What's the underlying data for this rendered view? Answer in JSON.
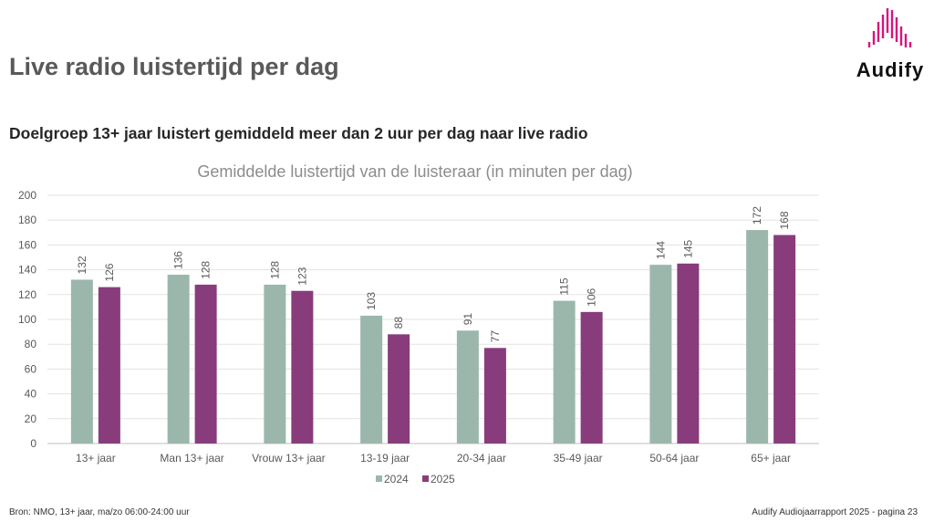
{
  "header": {
    "title": "Live radio luistertijd per dag",
    "subtitle": "Doelgroep 13+ jaar luistert gemiddeld meer dan 2 uur per dag naar live radio"
  },
  "logo": {
    "text": "Audify",
    "color": "#d6157e"
  },
  "footer": {
    "source": "Bron: NMO, 13+ jaar, ma/zo 06:00-24:00 uur",
    "page": "Audify Audiojaarrapport 2025 - pagina 23"
  },
  "chart_data": {
    "type": "bar",
    "title": "Gemiddelde luistertijd van de luisteraar (in minuten per dag)",
    "categories": [
      "13+ jaar",
      "Man 13+ jaar",
      "Vrouw 13+ jaar",
      "13-19 jaar",
      "20-34 jaar",
      "35-49 jaar",
      "50-64 jaar",
      "65+ jaar"
    ],
    "series": [
      {
        "name": "2024",
        "color": "#9bb7ac",
        "values": [
          132,
          136,
          128,
          103,
          91,
          115,
          144,
          172
        ]
      },
      {
        "name": "2025",
        "color": "#883c7c",
        "values": [
          126,
          128,
          123,
          88,
          77,
          106,
          145,
          168
        ]
      }
    ],
    "ylim": [
      0,
      200
    ],
    "yticks": [
      0,
      20,
      40,
      60,
      80,
      100,
      120,
      140,
      160,
      180,
      200
    ],
    "grid": true,
    "legend": "bottom",
    "xlabel": "",
    "ylabel": ""
  }
}
